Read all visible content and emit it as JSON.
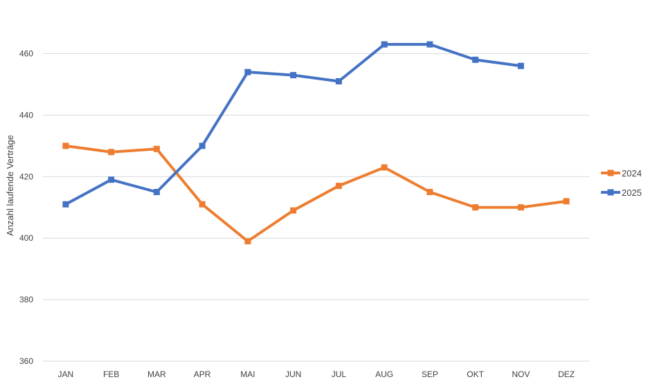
{
  "chart_data": {
    "type": "line",
    "title": "",
    "xlabel": "",
    "ylabel": "Anzahl laufende Verträge",
    "categories": [
      "JAN",
      "FEB",
      "MAR",
      "APR",
      "MAI",
      "JUN",
      "JUL",
      "AUG",
      "SEP",
      "OKT",
      "NOV",
      "DEZ"
    ],
    "ylim": [
      360,
      460
    ],
    "yticks": [
      360,
      380,
      400,
      420,
      440,
      460
    ],
    "grid": true,
    "legend_position": "right",
    "series": [
      {
        "name": "2024",
        "color": "#ED7D31",
        "marker": "square",
        "values": [
          430,
          428,
          429,
          411,
          399,
          409,
          417,
          423,
          415,
          410,
          410,
          412
        ]
      },
      {
        "name": "2025",
        "color": "#4472C4",
        "marker": "square",
        "values": [
          411,
          419,
          415,
          430,
          454,
          453,
          451,
          463,
          463,
          458,
          456,
          null
        ]
      }
    ]
  }
}
